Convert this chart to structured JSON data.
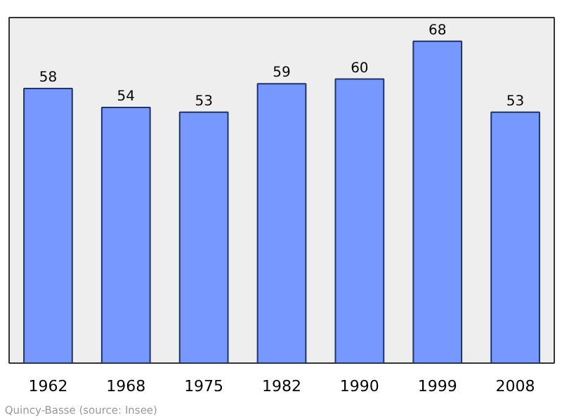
{
  "chart_data": {
    "type": "bar",
    "categories": [
      "1962",
      "1968",
      "1975",
      "1982",
      "1990",
      "1999",
      "2008"
    ],
    "values": [
      58,
      54,
      53,
      59,
      60,
      68,
      53
    ],
    "color": "#7799ff",
    "ylim": [
      0,
      73
    ],
    "data_labels": true,
    "grid": false,
    "annotations": [
      "Quincy-Basse",
      "(source: Insee)"
    ]
  }
}
